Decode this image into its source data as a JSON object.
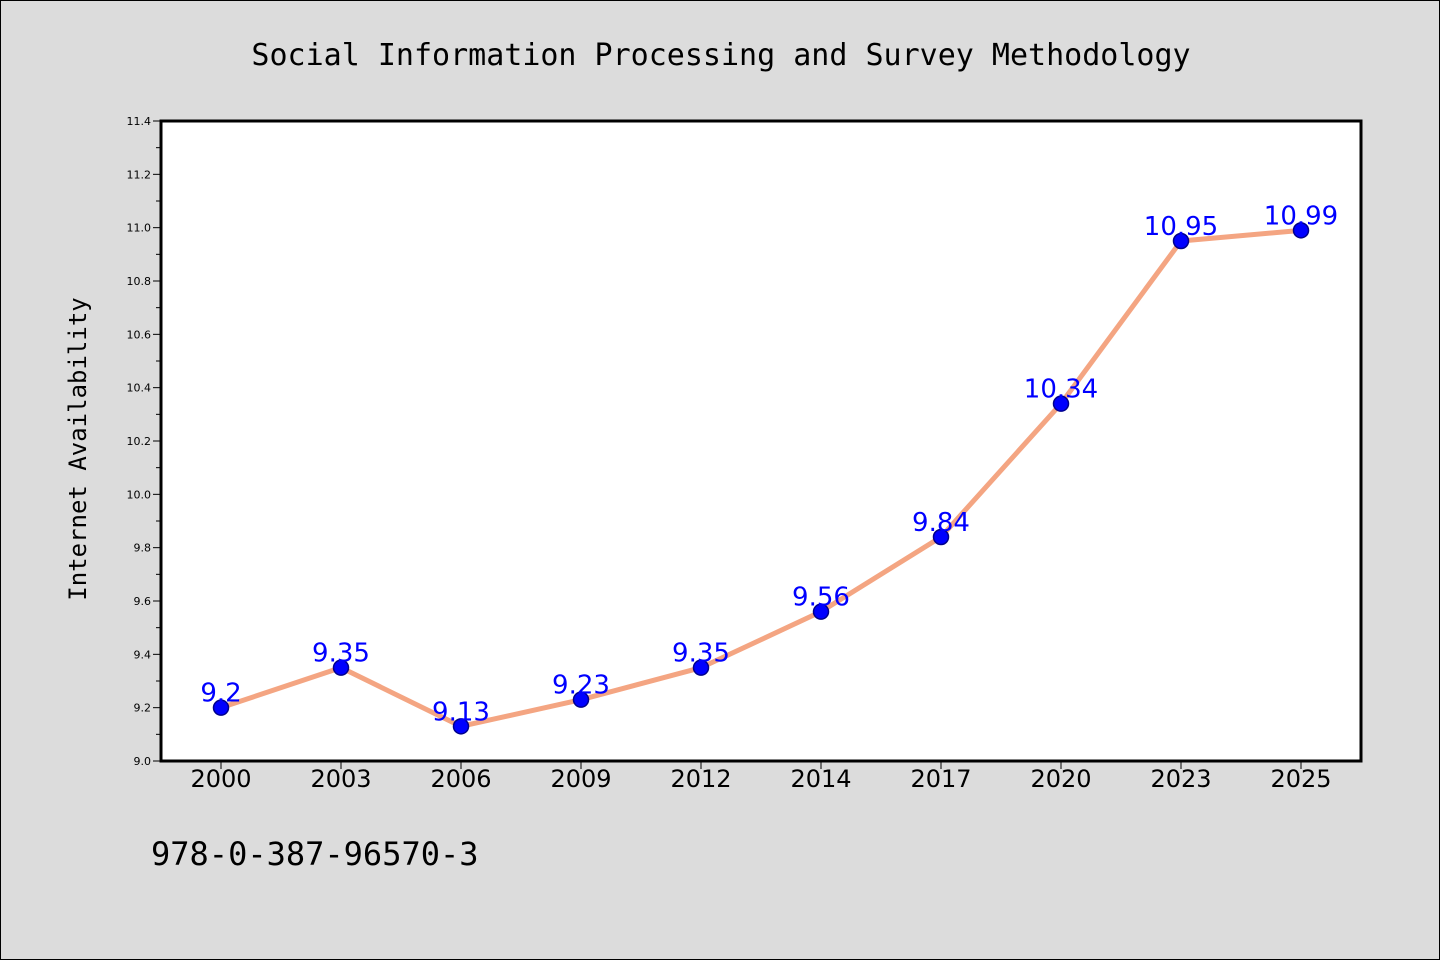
{
  "chart_data": {
    "type": "line",
    "title": "Social Information Processing and Survey Methodology",
    "xlabel": "",
    "ylabel": "Internet Availability",
    "categories": [
      "2000",
      "2003",
      "2006",
      "2009",
      "2012",
      "2014",
      "2017",
      "2020",
      "2023",
      "2025"
    ],
    "series": [
      {
        "values": [
          9.2,
          9.35,
          9.13,
          9.23,
          9.35,
          9.56,
          9.84,
          10.34,
          10.95,
          10.99
        ],
        "labels": [
          "9.2",
          "9.35",
          "9.13",
          "9.23",
          "9.35",
          "9.56",
          "9.84",
          "10.34",
          "10.95",
          "10.99"
        ]
      }
    ],
    "ylim": [
      9.0,
      11.4
    ],
    "yticks": [
      "9.0",
      "9.2",
      "9.4",
      "9.6",
      "9.8",
      "10.0",
      "10.2",
      "10.4",
      "10.6",
      "10.8",
      "11.0",
      "11.2",
      "11.4"
    ],
    "grid": false,
    "legend": "none",
    "colors": {
      "line": "#f4a582",
      "marker": "#0000ff",
      "marker_edge": "#00008b",
      "data_label": "#0000ff",
      "plot_bg": "#ffffff",
      "page_bg": "#dcdcdc"
    }
  },
  "footer_text": "978-0-387-96570-3"
}
